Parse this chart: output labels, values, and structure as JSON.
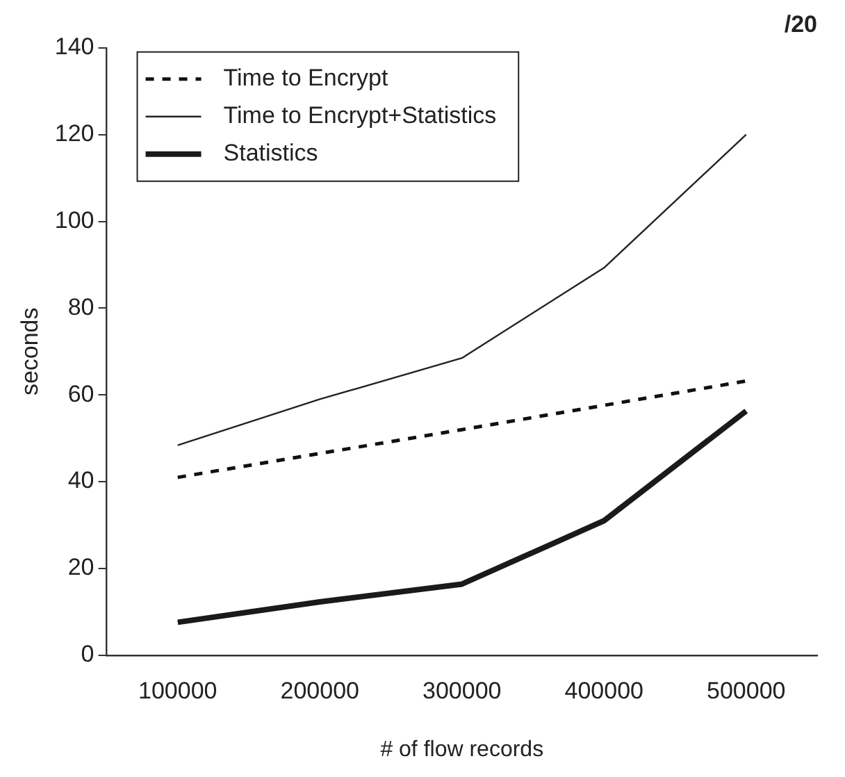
{
  "chart_data": {
    "type": "line",
    "title": "/20",
    "xlabel": "# of flow records",
    "ylabel": "seconds",
    "categories": [
      "100000",
      "200000",
      "300000",
      "400000",
      "500000"
    ],
    "series": [
      {
        "name": "Time to Encrypt",
        "color": "#111111",
        "line_style": "dashed",
        "values": [
          41,
          46.5,
          52,
          57.6,
          63.2
        ]
      },
      {
        "name": "Time to Encrypt+Statistics",
        "color": "#222222",
        "line_style": "solid",
        "values": [
          48.4,
          59,
          68.5,
          89.3,
          120
        ]
      },
      {
        "name": "Statistics",
        "color": "#1a1a1a",
        "line_style": "solid",
        "values": [
          7.6,
          12.3,
          16.4,
          31,
          56.3
        ]
      }
    ],
    "ylim": [
      0,
      140
    ],
    "yticks": [
      0,
      20,
      40,
      60,
      80,
      100,
      120,
      140
    ],
    "grid": false,
    "legend": "top left",
    "marker": "none"
  }
}
